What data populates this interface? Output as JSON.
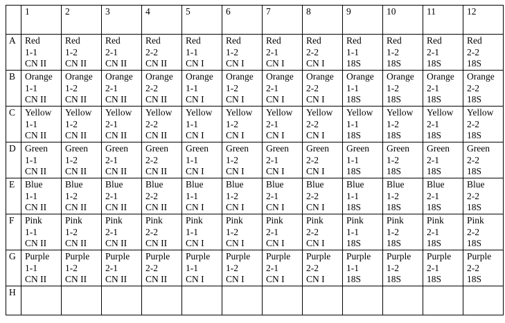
{
  "table": {
    "corner": "",
    "columns": [
      "1",
      "2",
      "3",
      "4",
      "5",
      "6",
      "7",
      "8",
      "9",
      "10",
      "11",
      "12"
    ],
    "rows": [
      {
        "label": "A",
        "color": "Red"
      },
      {
        "label": "B",
        "color": "Orange"
      },
      {
        "label": "C",
        "color": "Yellow"
      },
      {
        "label": "D",
        "color": "Green"
      },
      {
        "label": "E",
        "color": "Blue"
      },
      {
        "label": "F",
        "color": "Pink"
      },
      {
        "label": "G",
        "color": "Purple"
      },
      {
        "label": "H",
        "color": ""
      }
    ],
    "cells": {
      "A": [
        [
          "Red",
          "1-1",
          "CN II"
        ],
        [
          "Red",
          "1-2",
          "CN II"
        ],
        [
          "Red",
          "2-1",
          "CN II"
        ],
        [
          "Red",
          "2-2",
          "CN II"
        ],
        [
          "Red",
          "1-1",
          "CN I"
        ],
        [
          "Red",
          "1-2",
          "CN I"
        ],
        [
          "Red",
          "2-1",
          "CN I"
        ],
        [
          "Red",
          "2-2",
          "CN I"
        ],
        [
          "Red",
          "1-1",
          "18S"
        ],
        [
          "Red",
          "1-2",
          "18S"
        ],
        [
          "Red",
          "2-1",
          "18S"
        ],
        [
          "Red",
          "2-2",
          "18S"
        ]
      ],
      "B": [
        [
          "Orange",
          "1-1",
          "CN II"
        ],
        [
          "Orange",
          "1-2",
          "CN II"
        ],
        [
          "Orange",
          "2-1",
          "CN II"
        ],
        [
          "Orange",
          "2-2",
          "CN II"
        ],
        [
          "Orange",
          "1-1",
          "CN I"
        ],
        [
          "Orange",
          "1-2",
          "CN I"
        ],
        [
          "Orange",
          "2-1",
          "CN I"
        ],
        [
          "Orange",
          "2-2",
          "CN I"
        ],
        [
          "Orange",
          "1-1",
          "18S"
        ],
        [
          "Orange",
          "1-2",
          "18S"
        ],
        [
          "Orange",
          "2-1",
          "18S"
        ],
        [
          "Orange",
          "2-2",
          "18S"
        ]
      ],
      "C": [
        [
          "Yellow",
          "1-1",
          "CN II"
        ],
        [
          "Yellow",
          "1-2",
          "CN II"
        ],
        [
          "Yellow",
          "2-1",
          "CN II"
        ],
        [
          "Yellow",
          "2-2",
          "CN II"
        ],
        [
          "Yellow",
          "1-1",
          "CN I"
        ],
        [
          "Yellow",
          "1-2",
          "CN I"
        ],
        [
          "Yellow",
          "2-1",
          "CN I"
        ],
        [
          "Yellow",
          "2-2",
          "CN I"
        ],
        [
          "Yellow",
          "1-1",
          "18S"
        ],
        [
          "Yellow",
          "1-2",
          "18S"
        ],
        [
          "Yellow",
          "2-1",
          "18S"
        ],
        [
          "Yellow",
          "2-2",
          "18S"
        ]
      ],
      "D": [
        [
          "Green",
          "1-1",
          "CN II"
        ],
        [
          "Green",
          "1-2",
          "CN II"
        ],
        [
          "Green",
          "2-1",
          "CN II"
        ],
        [
          "Green",
          "2-2",
          "CN II"
        ],
        [
          "Green",
          "1-1",
          "CN I"
        ],
        [
          "Green",
          "1-2",
          "CN I"
        ],
        [
          "Green",
          "2-1",
          "CN I"
        ],
        [
          "Green",
          "2-2",
          "CN I"
        ],
        [
          "Green",
          "1-1",
          "18S"
        ],
        [
          "Green",
          "1-2",
          "18S"
        ],
        [
          "Green",
          "2-1",
          "18S"
        ],
        [
          "Green",
          "2-2",
          "18S"
        ]
      ],
      "E": [
        [
          "Blue",
          "1-1",
          "CN II"
        ],
        [
          "Blue",
          "1-2",
          "CN II"
        ],
        [
          "Blue",
          "2-1",
          "CN II"
        ],
        [
          "Blue",
          "2-2",
          "CN II"
        ],
        [
          "Blue",
          "1-1",
          "CN I"
        ],
        [
          "Blue",
          "1-2",
          "CN I"
        ],
        [
          "Blue",
          "2-1",
          "CN I"
        ],
        [
          "Blue",
          "2-2",
          "CN I"
        ],
        [
          "Blue",
          "1-1",
          "18S"
        ],
        [
          "Blue",
          "1-2",
          "18S"
        ],
        [
          "Blue",
          "2-1",
          "18S"
        ],
        [
          "Blue",
          "2-2",
          "18S"
        ]
      ],
      "F": [
        [
          "Pink",
          "1-1",
          "CN II"
        ],
        [
          "Pink",
          "1-2",
          "CN II"
        ],
        [
          "Pink",
          "2-1",
          "CN II"
        ],
        [
          "Pink",
          "2-2",
          "CN II"
        ],
        [
          "Pink",
          "1-1",
          "CN I"
        ],
        [
          "Pink",
          "1-2",
          "CN I"
        ],
        [
          "Pink",
          "2-1",
          "CN I"
        ],
        [
          "Pink",
          "2-2",
          "CN I"
        ],
        [
          "Pink",
          "1-1",
          "18S"
        ],
        [
          "Pink",
          "1-2",
          "18S"
        ],
        [
          "Pink",
          "2-1",
          "18S"
        ],
        [
          "Pink",
          "2-2",
          "18S"
        ]
      ],
      "G": [
        [
          "Purple",
          "1-1",
          "CN II"
        ],
        [
          "Purple",
          "1-2",
          "CN II"
        ],
        [
          "Purple",
          "2-1",
          "CN II"
        ],
        [
          "Purple",
          "2-2",
          "CN II"
        ],
        [
          "Purple",
          "1-1",
          "CN I"
        ],
        [
          "Purple",
          "1-2",
          "CN I"
        ],
        [
          "Purple",
          "2-1",
          "CN I"
        ],
        [
          "Purple",
          "2-2",
          "CN I"
        ],
        [
          "Purple",
          "1-1",
          "18S"
        ],
        [
          "Purple",
          "1-2",
          "18S"
        ],
        [
          "Purple",
          "2-1",
          "18S"
        ],
        [
          "Purple",
          "2-2",
          "18S"
        ]
      ],
      "H": [
        [],
        [],
        [],
        [],
        [],
        [],
        [],
        [],
        [],
        [],
        [],
        []
      ]
    }
  }
}
